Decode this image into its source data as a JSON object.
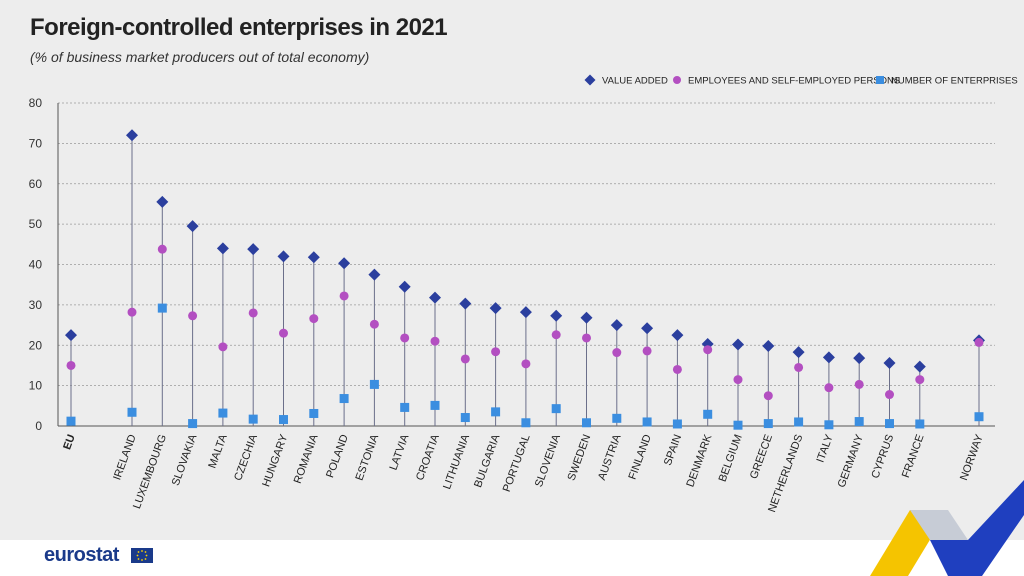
{
  "header": {
    "title": "Foreign-controlled enterprises in 2021",
    "subtitle": "(% of business market producers out of total economy)"
  },
  "footer": {
    "logo_text": "eurostat"
  },
  "colors": {
    "value_added": "#2b3f9e",
    "employees": "#b34fc1",
    "enterprises": "#3b8ee0",
    "stem": "#6b6f8a",
    "grid": "#9a9a9a"
  },
  "chart_data": {
    "type": "scatter",
    "title": "Foreign-controlled enterprises in 2021",
    "subtitle": "(% of business market producers out of total economy)",
    "ylim": [
      0,
      80
    ],
    "yticks": [
      0,
      10,
      20,
      30,
      40,
      50,
      60,
      70,
      80
    ],
    "grid": true,
    "legend_position": "top-right",
    "categories": [
      "EU",
      "IRELAND",
      "LUXEMBOURG",
      "SLOVAKIA",
      "MALTA",
      "CZECHIA",
      "HUNGARY",
      "ROMANIA",
      "POLAND",
      "ESTONIA",
      "LATVIA",
      "CROATIA",
      "LITHUANIA",
      "BULGARIA",
      "PORTUGAL",
      "SLOVENIA",
      "SWEDEN",
      "AUSTRIA",
      "FINLAND",
      "SPAIN",
      "DENMARK",
      "BELGIUM",
      "GREECE",
      "NETHERLANDS",
      "ITALY",
      "GERMANY",
      "CYPRUS",
      "FRANCE",
      "NORWAY"
    ],
    "series": [
      {
        "name": "VALUE ADDED",
        "marker": "diamond",
        "color": "#2b3f9e",
        "values": [
          22.5,
          72,
          55.5,
          49.5,
          44,
          43.8,
          42,
          41.8,
          40.3,
          37.5,
          34.5,
          31.8,
          30.3,
          29.2,
          28.2,
          27.3,
          26.8,
          25,
          24.2,
          22.5,
          20.3,
          20.2,
          19.8,
          18.3,
          17,
          16.8,
          15.6,
          14.7,
          21.2
        ]
      },
      {
        "name": "EMPLOYEES AND SELF-EMPLOYED PERSONS",
        "marker": "circle",
        "color": "#b34fc1",
        "values": [
          15,
          28.2,
          43.8,
          27.3,
          19.6,
          28,
          23,
          26.6,
          32.2,
          25.2,
          21.8,
          21,
          16.6,
          18.4,
          15.4,
          22.6,
          21.8,
          18.2,
          18.6,
          14,
          18.9,
          11.5,
          7.5,
          14.5,
          9.5,
          10.3,
          7.8,
          11.5,
          20.7
        ]
      },
      {
        "name": "NUMBER OF ENTERPRISES",
        "marker": "square",
        "color": "#3b8ee0",
        "values": [
          1.2,
          3.4,
          29.2,
          0.6,
          3.2,
          1.7,
          1.6,
          3.1,
          6.8,
          10.3,
          4.6,
          5.1,
          2.1,
          3.5,
          0.8,
          4.3,
          0.8,
          1.9,
          1,
          0.5,
          2.9,
          0.2,
          0.6,
          1,
          0.3,
          1.1,
          0.6,
          0.5,
          2.3
        ]
      }
    ]
  }
}
